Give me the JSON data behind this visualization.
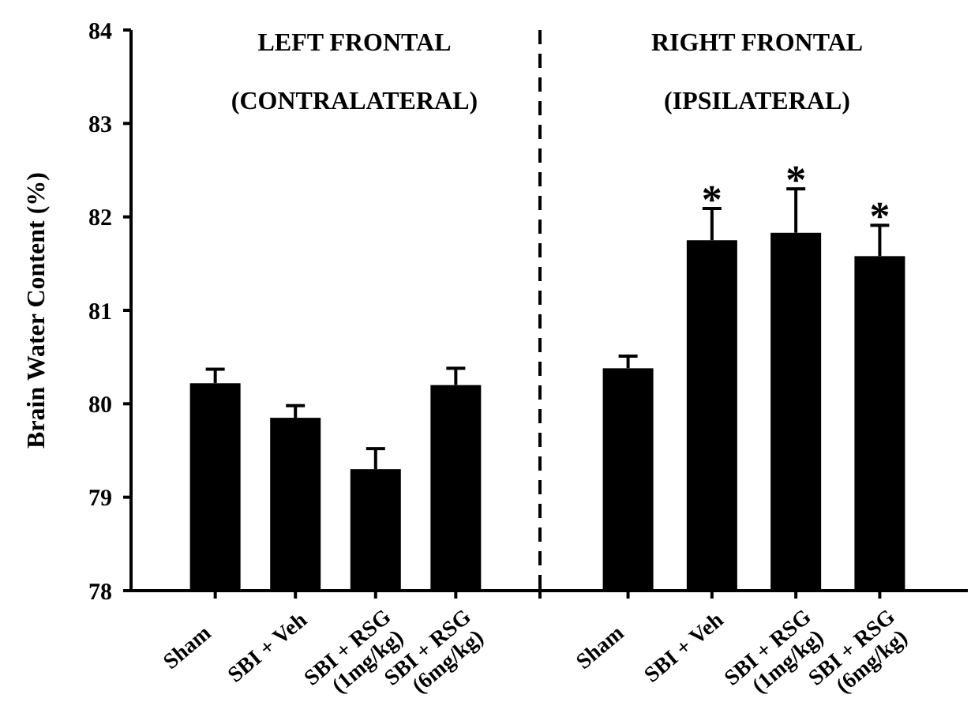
{
  "chart_data": [
    {
      "type": "bar",
      "title": "LEFT FRONTAL\n(CONTRALATERAL)",
      "ylabel": "Brain Water Content (%)",
      "categories": [
        "Sham",
        "SBI + Veh",
        "SBI + RSG\n(1mg/kg)",
        "SBI + RSG\n(6mg/kg)"
      ],
      "values": [
        80.22,
        79.85,
        79.3,
        80.2
      ],
      "errors": [
        0.15,
        0.13,
        0.22,
        0.18
      ],
      "color": "#000000",
      "ylim": [
        78,
        84
      ],
      "yticks": [
        78,
        79,
        80,
        81,
        82,
        83,
        84
      ],
      "grid": false
    },
    {
      "type": "bar",
      "title": "RIGHT FRONTAL\n(IPSILATERAL)",
      "categories": [
        "Sham",
        "SBI + Veh",
        "SBI + RSG\n(1mg/kg)",
        "SBI + RSG\n(6mg/kg)"
      ],
      "values": [
        80.38,
        81.75,
        81.83,
        81.58
      ],
      "errors": [
        0.13,
        0.34,
        0.47,
        0.33
      ],
      "value_labels": [
        null,
        "*",
        "*",
        "*"
      ],
      "color": "#000000",
      "ylim": [
        78,
        84
      ],
      "grid": false,
      "tick_labels": "x"
    }
  ]
}
